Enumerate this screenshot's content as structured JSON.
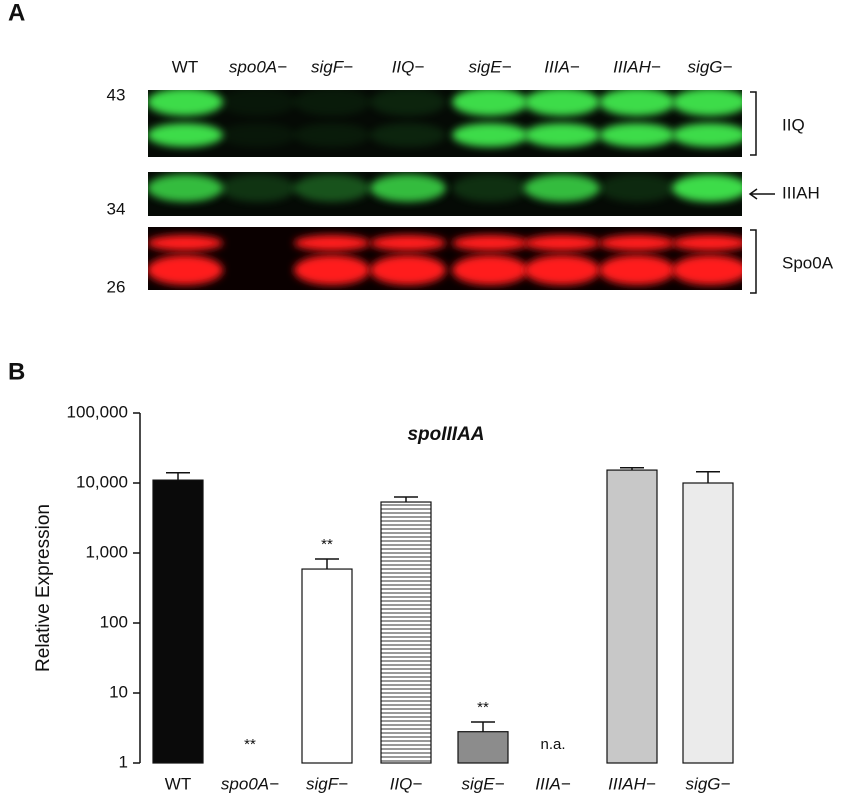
{
  "panel_a": {
    "label": "A",
    "lanes": [
      "WT",
      "spo0A−",
      "sigF−",
      "IIQ−",
      "sigE−",
      "IIIA−",
      "IIIAH−",
      "sigG−"
    ],
    "markers": [
      "43",
      "34",
      "26"
    ],
    "bands": [
      "IIQ",
      "IIIAH",
      "Spo0A"
    ]
  },
  "chart_data": {
    "type": "bar",
    "panel_label": "B",
    "title": "spoIIIAA",
    "y_label": "Relative Expression",
    "categories": [
      "WT",
      "spo0A−",
      "sigF−",
      "IIQ−",
      "sigE−",
      "IIIA−",
      "IIIAH−",
      "sigG−"
    ],
    "italic": [
      false,
      true,
      true,
      true,
      true,
      true,
      true,
      true
    ],
    "values": [
      11000,
      null,
      590,
      5350,
      2.8,
      null,
      15300,
      10000
    ],
    "errors": [
      3000,
      null,
      230,
      950,
      1.05,
      null,
      1200,
      4500
    ],
    "colors": [
      "#0a0a0a",
      null,
      "#ffffff",
      "#ffffff",
      "#8c8c8c",
      null,
      "#c8c8c8",
      "#ebebeb"
    ],
    "hatch": [
      null,
      null,
      null,
      "horizontal-lines",
      null,
      null,
      null,
      null
    ],
    "annotations": [
      null,
      "**",
      "**",
      null,
      "**",
      "n.a.",
      null,
      null
    ],
    "log_scale": true,
    "ylim": [
      1,
      100000
    ],
    "yticks": [
      1,
      10,
      100,
      {
        "value": 1000,
        "label": "1,000"
      },
      {
        "value": 10000,
        "label": "10,000"
      },
      {
        "value": 100000,
        "label": "100,000"
      }
    ]
  }
}
